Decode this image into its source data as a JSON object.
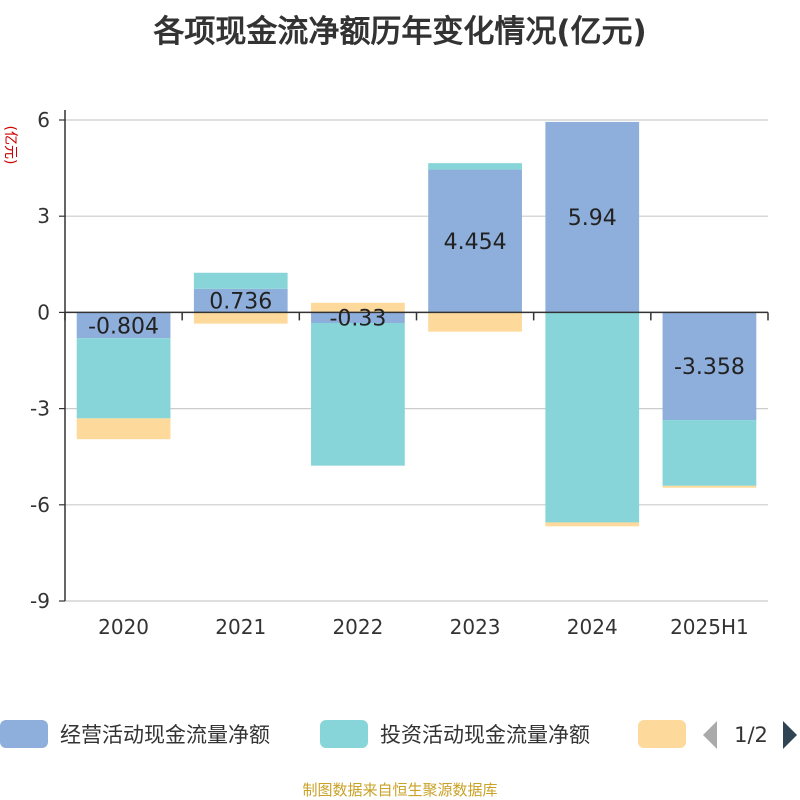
{
  "chart_data": {
    "type": "bar",
    "stacked": true,
    "title": "各项现金流净额历年变化情况(亿元)",
    "ylabel": "(亿元)",
    "xlabel": "",
    "categories": [
      "2020",
      "2021",
      "2022",
      "2023",
      "2024",
      "2025H1"
    ],
    "ylim": [
      -9,
      6
    ],
    "yticks": [
      "6",
      "3",
      "0",
      "-3",
      "-6",
      "-9"
    ],
    "grid": true,
    "legend_position": "bottom",
    "series": [
      {
        "name": "经营活动现金流量净额",
        "color": "#8eaedb",
        "values": [
          -0.804,
          0.736,
          -0.33,
          4.454,
          5.94,
          -3.358
        ],
        "show_labels": true
      },
      {
        "name": "投资活动现金流量净额",
        "color": "#87d5d8",
        "values": [
          -2.5,
          0.5,
          -4.45,
          0.2,
          -6.55,
          -2.05
        ],
        "show_labels": false
      },
      {
        "name": "",
        "color": "#fdd99b",
        "values": [
          -0.65,
          -0.35,
          0.3,
          -0.6,
          -0.12,
          -0.06
        ],
        "show_labels": false
      }
    ],
    "data_labels": [
      "-0.804",
      "0.736",
      "-0.33",
      "4.454",
      "5.94",
      "-3.358"
    ]
  },
  "legend": {
    "page_indicator": "1/2"
  },
  "source_note": "制图数据来自恒生聚源数据库"
}
